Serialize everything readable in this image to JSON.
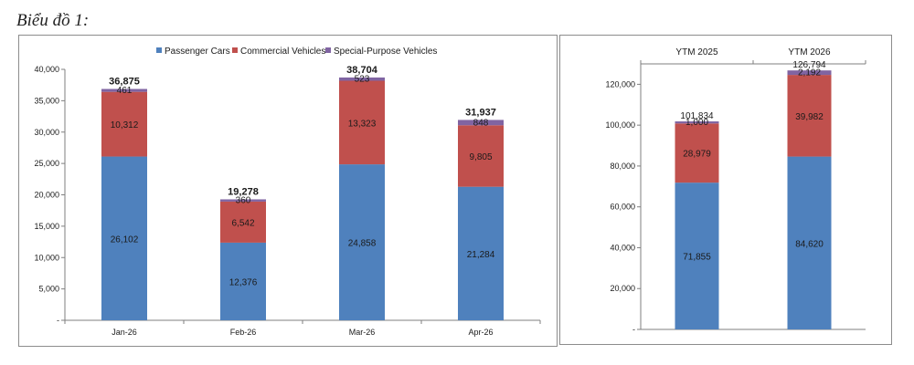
{
  "page": {
    "heading": "Biểu đồ 1:"
  },
  "colors": {
    "passenger": "#4f81bd",
    "commercial": "#c0504d",
    "special": "#8064a2"
  },
  "chart_data": [
    {
      "type": "bar",
      "stacked": true,
      "categories": [
        "Jan-26",
        "Feb-26",
        "Mar-26",
        "Apr-26"
      ],
      "series": [
        {
          "name": "Passenger Cars",
          "values": [
            26102,
            12376,
            24858,
            21284
          ],
          "labels": [
            "26,102",
            "12,376",
            "24,858",
            "21,284"
          ]
        },
        {
          "name": "Commercial Vehicles",
          "values": [
            10312,
            6542,
            13323,
            9805
          ],
          "labels": [
            "10,312",
            "6,542",
            "13,323",
            "9,805"
          ]
        },
        {
          "name": "Special-Purpose Vehicles",
          "values": [
            461,
            360,
            523,
            848
          ],
          "labels": [
            "461",
            "360",
            "523",
            "848"
          ]
        }
      ],
      "totals": [
        "36,875",
        "19,278",
        "38,704",
        "31,937"
      ],
      "total_values": [
        36875,
        19278,
        38704,
        31937
      ],
      "ylim": [
        0,
        40000
      ],
      "yticks": [
        "-",
        "5,000",
        "10,000",
        "15,000",
        "20,000",
        "25,000",
        "30,000",
        "35,000",
        "40,000"
      ],
      "legend_position": "top",
      "grid": false
    },
    {
      "type": "bar",
      "stacked": true,
      "categories": [
        "YTM 2025",
        "YTM 2026"
      ],
      "category_position": "top",
      "series": [
        {
          "name": "Passenger Cars",
          "values": [
            71855,
            84620
          ],
          "labels": [
            "71,855",
            "84,620"
          ]
        },
        {
          "name": "Commercial Vehicles",
          "values": [
            28979,
            39982
          ],
          "labels": [
            "28,979",
            "39,982"
          ]
        },
        {
          "name": "Special-Purpose Vehicles",
          "values": [
            1000,
            2192
          ],
          "labels": [
            "1,000",
            "2,192"
          ]
        }
      ],
      "totals": [
        "101,834",
        "126,794"
      ],
      "total_values": [
        101834,
        126794
      ],
      "ylim": [
        0,
        130000
      ],
      "yticks": [
        "-",
        "20,000",
        "40,000",
        "60,000",
        "80,000",
        "100,000",
        "120,000"
      ],
      "legend": false,
      "grid": false
    }
  ]
}
